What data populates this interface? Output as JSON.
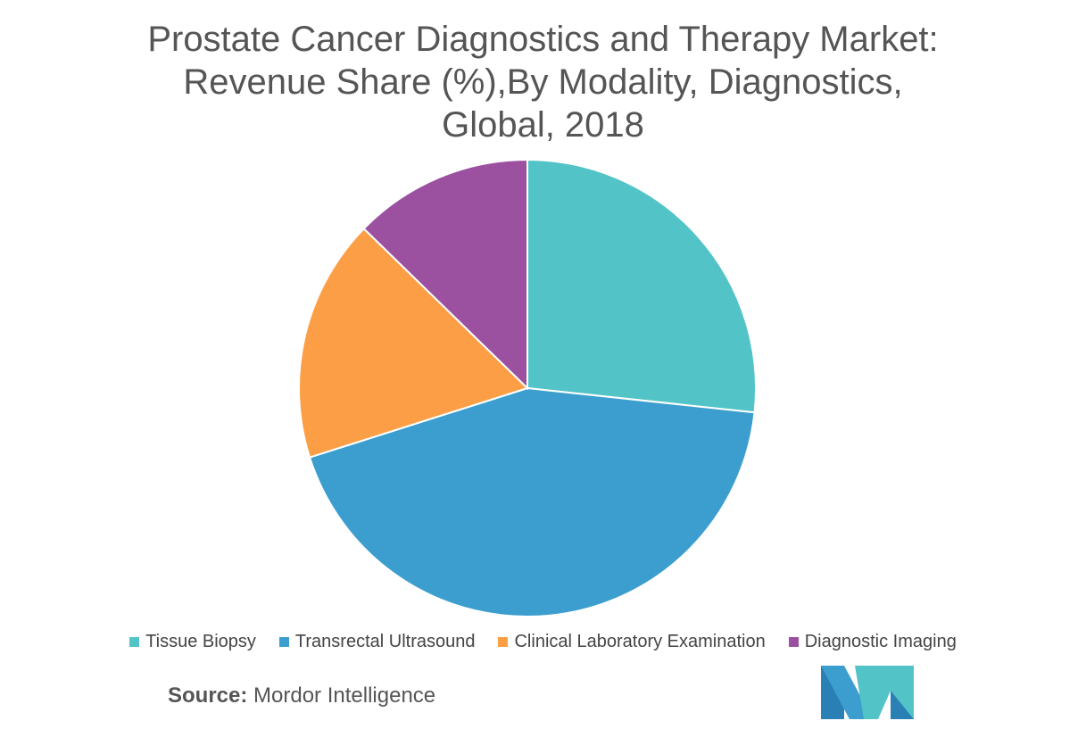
{
  "chart_data": {
    "type": "pie",
    "title_lines": [
      "Prostate Cancer Diagnostics and Therapy Market:",
      "Revenue Share (%),By Modality, Diagnostics,",
      "Global, 2018"
    ],
    "categories": [
      "Tissue Biopsy",
      "Transrectal Ultrasound",
      "Clinical Laboratory Examination",
      "Diagnostic Imaging"
    ],
    "values": [
      26.7,
      43.4,
      17.2,
      12.7
    ],
    "colors": [
      "#52C4C7",
      "#3C9ECF",
      "#FC9E45",
      "#9B51A0"
    ],
    "legend_position": "bottom",
    "start_angle": "12 o'clock, clockwise"
  },
  "source": {
    "label": "Source:",
    "text": " Mordor Intelligence"
  }
}
